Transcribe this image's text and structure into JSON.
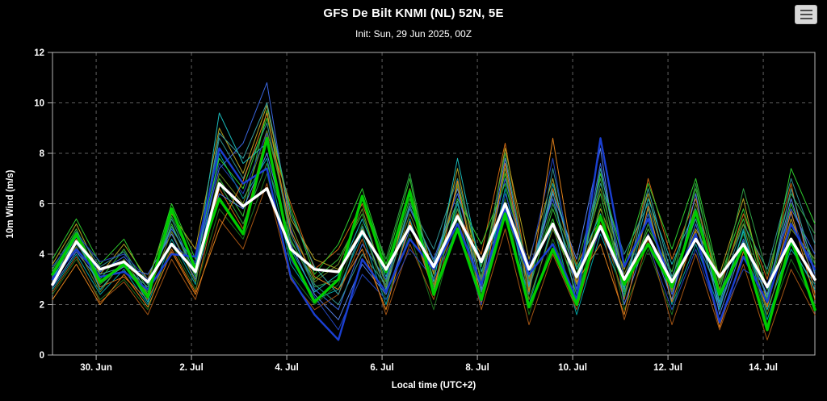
{
  "menu_button": {
    "icon": "hamburger-icon"
  },
  "chart_data": {
    "type": "line",
    "title": "GFS De Bilt KNMI (NL) 52N, 5E",
    "subtitle": "Init: Sun, 29 Jun 2025, 00Z",
    "xlabel": "Local time (UTC+2)",
    "ylabel": "10m Wind (m/s)",
    "ylim": [
      0,
      12
    ],
    "xlim_hours": [
      0,
      384
    ],
    "x_start_hour": 0,
    "x_step_hours": 12,
    "grid": "dashed",
    "legend": "none",
    "colors": {
      "background": "#000000",
      "grid": "#606060",
      "axis": "#b4b4b4",
      "text": "#ffffff"
    },
    "y_ticks": [
      0,
      2,
      4,
      6,
      8,
      10,
      12
    ],
    "x_ticks": [
      {
        "label": "30. Jun",
        "hour": 22
      },
      {
        "label": "2. Jul",
        "hour": 70
      },
      {
        "label": "4. Jul",
        "hour": 118
      },
      {
        "label": "6. Jul",
        "hour": 166
      },
      {
        "label": "8. Jul",
        "hour": 214
      },
      {
        "label": "10. Jul",
        "hour": 262
      },
      {
        "label": "12. Jul",
        "hour": 310
      },
      {
        "label": "14. Jul",
        "hour": 358
      }
    ],
    "series": [
      {
        "name": "member-01",
        "color": "#33bb33",
        "width": 1,
        "values": [
          3.4,
          5.0,
          3.0,
          4.2,
          2.6,
          5.2,
          3.1,
          7.0,
          5.5,
          9.7,
          4.5,
          3.0,
          3.8,
          5.6,
          2.9,
          6.2,
          3.0,
          6.8,
          3.5,
          7.2,
          2.6,
          5.8,
          3.2,
          6.4,
          2.5,
          5.0,
          3.3,
          6.6,
          2.8,
          5.4,
          2.2,
          6.0,
          3.6
        ]
      },
      {
        "name": "member-02",
        "color": "#00a3a3",
        "width": 1,
        "values": [
          2.6,
          4.0,
          2.4,
          3.4,
          2.0,
          4.6,
          2.8,
          8.0,
          6.2,
          7.8,
          3.6,
          2.2,
          2.6,
          4.8,
          2.0,
          5.4,
          2.6,
          6.0,
          2.2,
          6.6,
          2.0,
          5.2,
          1.6,
          4.8,
          2.4,
          5.8,
          2.0,
          4.4,
          1.8,
          5.0,
          1.4,
          4.2,
          2.8
        ]
      },
      {
        "name": "member-03",
        "color": "#3a66e0",
        "width": 1,
        "values": [
          3.1,
          4.4,
          3.3,
          3.9,
          2.8,
          5.0,
          3.6,
          7.4,
          8.4,
          10.8,
          5.0,
          2.6,
          1.8,
          4.4,
          3.0,
          5.8,
          3.8,
          6.4,
          3.0,
          7.0,
          3.4,
          6.2,
          2.6,
          7.6,
          3.0,
          5.6,
          2.4,
          5.2,
          2.0,
          4.6,
          2.6,
          5.8,
          4.0
        ]
      },
      {
        "name": "member-04",
        "color": "#cc6611",
        "width": 1,
        "values": [
          2.9,
          4.6,
          2.7,
          3.1,
          2.2,
          4.2,
          2.5,
          6.6,
          5.0,
          8.8,
          6.0,
          3.4,
          4.2,
          6.0,
          3.4,
          5.2,
          2.8,
          5.6,
          4.0,
          8.4,
          3.0,
          6.6,
          3.6,
          5.4,
          2.2,
          7.0,
          3.8,
          6.2,
          2.6,
          5.6,
          3.0,
          6.8,
          2.4
        ]
      },
      {
        "name": "member-05",
        "color": "#b3a321",
        "width": 1,
        "values": [
          3.6,
          5.2,
          3.2,
          4.4,
          3.0,
          5.6,
          4.2,
          9.0,
          7.2,
          9.9,
          5.4,
          3.8,
          3.4,
          5.0,
          2.6,
          6.6,
          3.2,
          7.4,
          2.8,
          8.2,
          3.8,
          7.0,
          2.8,
          5.8,
          3.4,
          6.4,
          2.6,
          5.0,
          3.2,
          6.2,
          2.0,
          5.4,
          3.0
        ]
      },
      {
        "name": "member-06",
        "color": "#1d6f1d",
        "width": 1,
        "values": [
          2.4,
          3.8,
          2.2,
          3.0,
          1.8,
          4.4,
          2.6,
          5.8,
          4.6,
          7.2,
          3.2,
          2.0,
          2.8,
          5.2,
          2.2,
          4.8,
          1.8,
          5.4,
          2.4,
          6.2,
          1.6,
          4.6,
          2.2,
          6.0,
          1.8,
          4.2,
          1.6,
          5.6,
          2.2,
          4.8,
          1.2,
          3.8,
          2.0
        ]
      },
      {
        "name": "member-07",
        "color": "#2e8f8f",
        "width": 1,
        "values": [
          3.3,
          4.9,
          3.5,
          4.1,
          2.4,
          5.4,
          3.2,
          8.6,
          7.0,
          9.2,
          4.8,
          2.8,
          2.0,
          4.0,
          2.8,
          6.0,
          4.2,
          7.0,
          3.6,
          5.4,
          2.4,
          7.4,
          3.0,
          6.8,
          4.0,
          6.0,
          3.0,
          4.6,
          2.4,
          5.2,
          3.4,
          7.0,
          4.4
        ]
      },
      {
        "name": "member-08",
        "color": "#5580e8",
        "width": 1,
        "values": [
          2.7,
          4.1,
          2.9,
          3.5,
          3.2,
          4.8,
          3.0,
          6.4,
          5.8,
          8.0,
          4.4,
          2.4,
          1.4,
          3.6,
          2.4,
          5.0,
          3.6,
          6.6,
          2.6,
          7.8,
          2.8,
          6.4,
          3.8,
          8.2,
          2.0,
          4.8,
          2.2,
          6.4,
          1.6,
          4.4,
          2.4,
          6.2,
          3.2
        ]
      },
      {
        "name": "member-09",
        "color": "#2ecc2e",
        "width": 1,
        "values": [
          3.8,
          5.4,
          3.6,
          4.6,
          2.8,
          6.0,
          3.8,
          7.8,
          6.6,
          9.4,
          5.8,
          3.2,
          4.4,
          6.6,
          3.6,
          7.0,
          2.4,
          6.2,
          4.4,
          6.8,
          3.2,
          5.4,
          2.4,
          7.2,
          3.6,
          6.8,
          4.2,
          7.0,
          3.0,
          5.8,
          2.6,
          7.4,
          5.2
        ]
      },
      {
        "name": "member-10",
        "color": "#a35413",
        "width": 1,
        "values": [
          2.5,
          3.9,
          2.1,
          2.9,
          1.6,
          3.8,
          2.2,
          5.4,
          4.2,
          6.8,
          3.0,
          1.8,
          2.4,
          4.6,
          1.6,
          4.4,
          2.2,
          5.8,
          1.8,
          5.0,
          1.2,
          4.0,
          1.8,
          5.2,
          1.4,
          4.6,
          1.2,
          4.0,
          1.0,
          3.6,
          0.6,
          3.4,
          1.6
        ]
      },
      {
        "name": "member-11",
        "color": "#19b8b8",
        "width": 1,
        "values": [
          3.0,
          4.7,
          2.6,
          3.7,
          2.1,
          5.8,
          3.4,
          9.6,
          7.6,
          8.4,
          4.2,
          2.5,
          3.2,
          5.4,
          3.1,
          6.4,
          2.9,
          7.8,
          3.3,
          6.0,
          2.7,
          6.8,
          3.4,
          5.6,
          2.6,
          6.2,
          3.6,
          5.8,
          2.1,
          4.9,
          1.8,
          4.4,
          2.6
        ]
      },
      {
        "name": "member-12",
        "color": "#6b8e23",
        "width": 1,
        "values": [
          2.8,
          4.3,
          2.5,
          3.8,
          2.4,
          4.9,
          2.9,
          7.2,
          6.0,
          8.9,
          5.2,
          2.9,
          3.6,
          5.8,
          2.7,
          5.6,
          3.3,
          6.7,
          2.9,
          7.4,
          2.2,
          5.0,
          2.8,
          6.6,
          3.2,
          5.4,
          2.5,
          6.0,
          2.9,
          5.2,
          1.6,
          5.0,
          3.8
        ]
      },
      {
        "name": "member-13",
        "color": "#2244bb",
        "width": 1,
        "values": [
          3.5,
          4.8,
          3.7,
          4.0,
          3.0,
          4.4,
          3.7,
          7.6,
          6.4,
          8.8,
          3.8,
          2.3,
          1.0,
          3.2,
          2.2,
          4.2,
          3.0,
          5.0,
          2.0,
          6.4,
          3.6,
          7.8,
          2.4,
          5.0,
          2.8,
          4.4,
          1.8,
          4.2,
          1.4,
          3.4,
          2.8,
          5.6,
          3.0
        ]
      },
      {
        "name": "member-14",
        "color": "#2f9e44",
        "width": 1,
        "values": [
          3.2,
          4.5,
          2.8,
          3.6,
          2.5,
          5.5,
          3.5,
          6.8,
          5.2,
          7.6,
          4.6,
          2.7,
          3.0,
          6.2,
          3.8,
          7.2,
          2.7,
          5.8,
          3.1,
          8.0,
          2.9,
          6.0,
          3.5,
          7.0,
          2.3,
          5.2,
          2.9,
          6.8,
          2.5,
          6.6,
          3.2,
          6.4,
          4.8
        ]
      },
      {
        "name": "member-15",
        "color": "#e0801a",
        "width": 1,
        "values": [
          2.2,
          3.6,
          2.0,
          3.2,
          1.9,
          4.1,
          2.4,
          5.0,
          6.9,
          9.6,
          4.9,
          3.1,
          2.6,
          4.2,
          1.8,
          5.3,
          2.5,
          6.9,
          2.1,
          7.6,
          2.5,
          8.6,
          2.9,
          4.4,
          1.6,
          5.9,
          2.1,
          4.9,
          1.1,
          4.1,
          1.9,
          5.7,
          2.2
        ]
      },
      {
        "name": "member-16",
        "color": "#37a0a0",
        "width": 1,
        "values": [
          2.9,
          4.4,
          3.2,
          3.5,
          2.7,
          5.1,
          3.3,
          8.8,
          7.8,
          10.0,
          5.6,
          3.5,
          2.4,
          5.1,
          2.6,
          5.9,
          3.7,
          6.1,
          2.5,
          5.7,
          3.1,
          6.5,
          2.1,
          7.4,
          2.7,
          6.6,
          3.1,
          5.4,
          1.9,
          4.5,
          2.3,
          6.6,
          3.3
        ]
      },
      {
        "name": "blue-bold-line",
        "color": "#1a3fd1",
        "width": 2.4,
        "values": [
          3.0,
          4.2,
          3.1,
          3.3,
          2.6,
          4.0,
          3.9,
          8.2,
          6.8,
          7.4,
          3.1,
          1.6,
          0.6,
          3.8,
          2.5,
          4.6,
          3.4,
          5.2,
          2.8,
          5.8,
          3.2,
          4.4,
          2.2,
          8.6,
          3.5,
          5.4,
          2.8,
          4.8,
          1.3,
          3.9,
          2.1,
          5.2,
          3.4
        ]
      },
      {
        "name": "green-bold-line",
        "color": "#00cc00",
        "width": 3.4,
        "values": [
          3.2,
          4.8,
          2.9,
          3.6,
          2.3,
          5.8,
          3.4,
          6.2,
          4.8,
          8.6,
          4.0,
          2.1,
          3.0,
          6.3,
          3.3,
          6.5,
          2.4,
          5.0,
          2.2,
          5.6,
          1.9,
          4.2,
          2.0,
          5.5,
          2.8,
          4.4,
          2.7,
          5.7,
          2.4,
          4.3,
          1.0,
          4.6,
          1.8
        ]
      },
      {
        "name": "white-bold-line",
        "color": "#ffffff",
        "width": 3.4,
        "values": [
          2.8,
          4.5,
          3.4,
          3.7,
          2.9,
          4.4,
          3.3,
          6.8,
          5.9,
          6.6,
          4.2,
          3.4,
          3.3,
          4.9,
          3.4,
          5.1,
          3.5,
          5.5,
          3.7,
          6.0,
          3.4,
          5.2,
          3.1,
          5.1,
          3.0,
          4.7,
          2.9,
          4.6,
          3.1,
          4.4,
          2.7,
          4.6,
          3.0
        ]
      }
    ]
  }
}
